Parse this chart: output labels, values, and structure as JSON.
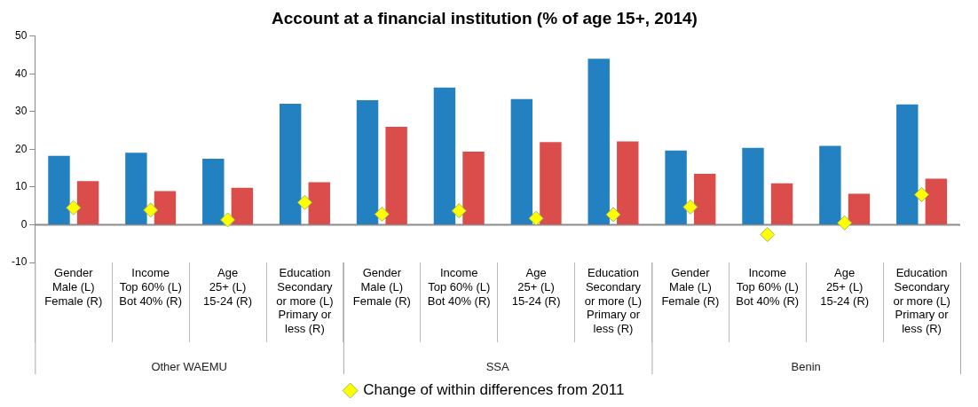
{
  "chart_data": {
    "type": "bar",
    "title": "Account at a financial institution (% of age 15+, 2014)",
    "categories": [
      "Gender\nMale (L)\nFemale (R)",
      "Income\nTop 60% (L)\nBot 40% (R)",
      "Age\n25+ (L)\n15-24 (R)",
      "Education\nSecondary\nor more (L)\nPrimary or\nless (R)",
      "Gender\nMale (L)\nFemale (R)",
      "Income\nTop 60% (L)\nBot 40% (R)",
      "Age\n25+ (L)\n15-24 (R)",
      "Education\nSecondary\nor more (L)\nPrimary or\nless (R)",
      "Gender\nMale (L)\nFemale (R)",
      "Income\nTop 60% (L)\nBot 40% (R)",
      "Age\n25+ (L)\n15-24 (R)",
      "Education\nSecondary\nor more (L)\nPrimary or\nless (R)"
    ],
    "series": [
      {
        "color": "#2381c2",
        "values": [
          18.3,
          19.1,
          17.5,
          32.1,
          33.0,
          36.4,
          33.3,
          44.0,
          19.7,
          20.4,
          20.9,
          31.9
        ]
      },
      {
        "color": "#db4d4b",
        "values": [
          11.6,
          8.9,
          9.8,
          11.3,
          26.0,
          19.4,
          21.9,
          22.1,
          13.5,
          11.0,
          8.2,
          12.2
        ]
      },
      {
        "type": "scatter",
        "name": "Change of within differences from 2011",
        "color": "#ffff00",
        "values": [
          4.5,
          3.9,
          1.3,
          5.9,
          2.8,
          3.7,
          1.7,
          2.7,
          4.7,
          -2.6,
          0.5,
          8.0
        ]
      }
    ],
    "ylim": [
      -10,
      50
    ],
    "yticks": [
      -10,
      0,
      10,
      20,
      30,
      40,
      50
    ],
    "ref_lines": [
      {
        "axis": "y",
        "value": 0,
        "color": "#8c8c8c"
      }
    ],
    "annotations": [
      "Other WAEMU",
      "SSA",
      "Benin"
    ],
    "grid": false,
    "legend": "bottom",
    "marker": "diamond"
  }
}
